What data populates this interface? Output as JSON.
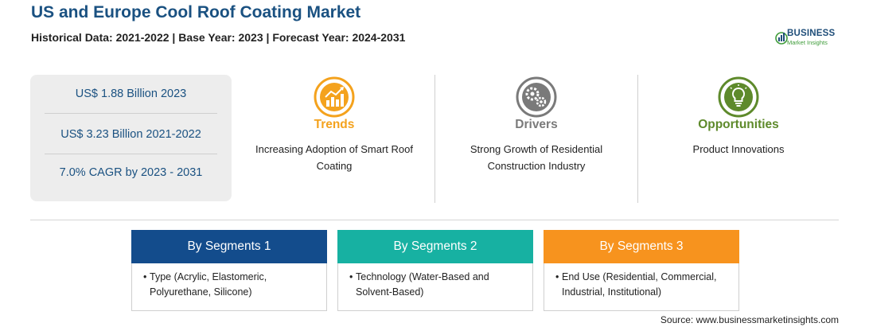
{
  "header": {
    "title": "US and Europe Cool Roof Coating Market",
    "subtitle": "Historical Data: 2021-2022 | Base Year: 2023 | Forecast Year: 2024-2031"
  },
  "logo": {
    "main": "BUSINESS",
    "sub": "Market Insights",
    "color": "#1f4e79",
    "accent": "#3f9c3a"
  },
  "stats": [
    "US$ 1.88 Billion 2023",
    "US$ 3.23 Billion 2021-2022",
    "7.0% CAGR by 2023 - 2031"
  ],
  "columns": [
    {
      "heading": "Trends",
      "text": "Increasing Adoption of Smart Roof Coating",
      "icon": "rising-chart-icon",
      "color": "#f4a21d"
    },
    {
      "heading": "Drivers",
      "text": "Strong Growth of Residential Construction Industry",
      "icon": "gears-icon",
      "color": "#7a7a7a"
    },
    {
      "heading": "Opportunities",
      "text": "Product Innovations",
      "icon": "lightbulb-icon",
      "color": "#5e8a2b"
    }
  ],
  "segments": [
    {
      "title": "By Segments 1",
      "text": "Type (Acrylic, Elastomeric, Polyurethane, Silicone)",
      "color": "#134c8c"
    },
    {
      "title": "By Segments 2",
      "text": "Technology (Water-Based and Solvent-Based)",
      "color": "#17b1a2"
    },
    {
      "title": "By Segments 3",
      "text": "End Use (Residential, Commercial, Industrial, Institutional)",
      "color": "#f7931e"
    }
  ],
  "source": "Source: www.businessmarketinsights.com"
}
